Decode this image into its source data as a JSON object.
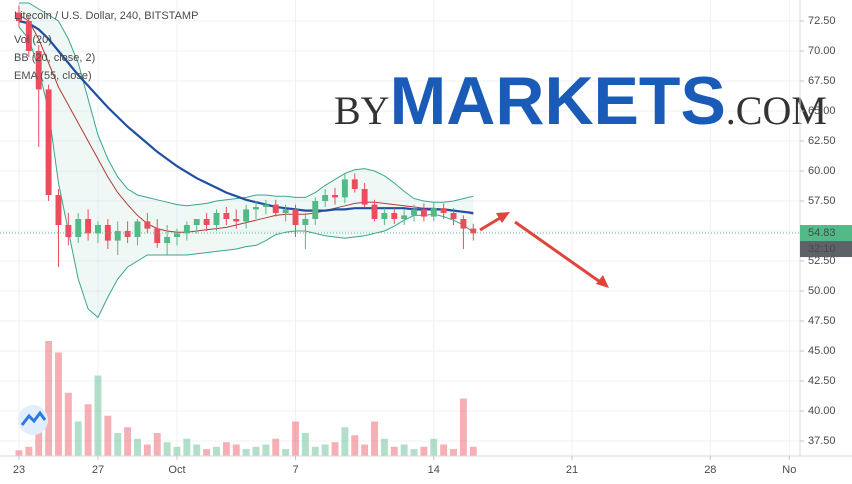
{
  "chart_data": {
    "type": "candlestick",
    "title": "Litecoin / U.S. Dollar, 240, BITSTAMP",
    "indicators": [
      "Vol (20)",
      "BB (20, close, 2)",
      "EMA (55, close)"
    ],
    "watermark": {
      "prefix": "BY",
      "brand": "MARKETS",
      "suffix": ".COM"
    },
    "x": [
      0,
      0.5,
      1,
      1.5,
      2,
      2.5,
      3,
      3.5,
      4,
      4.5,
      5,
      5.5,
      6,
      6.5,
      7,
      7.5,
      8,
      8.5,
      9,
      9.5,
      10,
      10.5,
      11,
      11.5,
      12,
      12.5,
      13,
      13.5,
      14,
      14.5,
      15,
      15.5,
      16,
      16.5,
      17,
      17.5,
      18,
      18.5,
      19,
      19.5,
      20,
      20.5,
      21,
      21.5,
      22,
      22.5,
      23
    ],
    "open": [
      73.2,
      72.5,
      70.0,
      66.8,
      58.0,
      55.5,
      54.5,
      56.0,
      54.8,
      55.5,
      54.2,
      55.0,
      54.5,
      55.8,
      55.2,
      54.0,
      54.5,
      54.8,
      55.5,
      56.0,
      55.5,
      56.5,
      56.0,
      55.8,
      56.8,
      57.0,
      57.2,
      56.5,
      56.8,
      55.5,
      56.0,
      57.5,
      58.0,
      57.8,
      59.3,
      58.5,
      57.2,
      56.0,
      56.5,
      56.0,
      56.3,
      56.8,
      56.2,
      56.9,
      56.5,
      56.0,
      55.2
    ],
    "high": [
      73.8,
      73.0,
      70.5,
      67.2,
      58.5,
      56.5,
      56.5,
      56.8,
      55.8,
      56.0,
      55.8,
      55.8,
      56.0,
      56.5,
      56.0,
      55.5,
      55.2,
      55.8,
      56.0,
      56.5,
      56.8,
      57.0,
      56.8,
      57.2,
      57.5,
      57.6,
      57.6,
      57.2,
      57.2,
      56.5,
      57.8,
      58.5,
      58.6,
      59.8,
      59.8,
      59.0,
      57.6,
      56.9,
      56.9,
      56.8,
      57.2,
      57.3,
      57.4,
      57.3,
      56.9,
      56.3,
      55.6
    ],
    "low": [
      72.0,
      69.5,
      62.0,
      57.5,
      52.0,
      53.8,
      54.0,
      54.2,
      54.0,
      53.5,
      53.0,
      54.0,
      53.8,
      54.8,
      53.6,
      53.0,
      53.8,
      54.2,
      54.8,
      55.0,
      55.0,
      55.5,
      55.2,
      55.2,
      56.0,
      56.4,
      56.2,
      55.8,
      54.5,
      53.5,
      55.5,
      57.0,
      57.2,
      57.3,
      58.2,
      57.0,
      55.8,
      55.5,
      55.6,
      55.5,
      55.8,
      55.8,
      55.8,
      56.0,
      55.5,
      53.5,
      54.2
    ],
    "close": [
      72.5,
      70.0,
      66.8,
      58.0,
      55.5,
      54.5,
      56.0,
      54.8,
      55.5,
      54.2,
      55.0,
      54.5,
      55.8,
      55.2,
      54.0,
      54.5,
      54.8,
      55.5,
      56.0,
      55.5,
      56.5,
      56.0,
      55.8,
      56.8,
      57.0,
      57.2,
      56.5,
      56.8,
      55.5,
      56.0,
      57.5,
      58.0,
      57.8,
      59.3,
      58.5,
      57.2,
      56.0,
      56.5,
      56.0,
      56.3,
      56.8,
      56.2,
      56.9,
      56.5,
      56.0,
      55.2,
      54.8
    ],
    "volume": [
      5,
      8,
      40,
      100,
      90,
      55,
      30,
      45,
      70,
      35,
      20,
      25,
      15,
      10,
      20,
      12,
      8,
      15,
      10,
      6,
      8,
      12,
      10,
      6,
      8,
      10,
      15,
      6,
      30,
      20,
      8,
      10,
      12,
      25,
      18,
      10,
      30,
      15,
      8,
      10,
      6,
      8,
      15,
      10,
      6,
      50,
      8
    ],
    "ema": [
      72.5,
      72.3,
      71.8,
      71.0,
      70.0,
      69.0,
      68.0,
      67.1,
      66.2,
      65.3,
      64.5,
      63.7,
      63.0,
      62.3,
      61.6,
      61.0,
      60.4,
      59.9,
      59.4,
      59.0,
      58.6,
      58.2,
      57.9,
      57.6,
      57.4,
      57.2,
      57.0,
      56.9,
      56.8,
      56.7,
      56.7,
      56.7,
      56.8,
      56.8,
      56.9,
      56.9,
      56.9,
      56.9,
      56.9,
      56.9,
      56.8,
      56.8,
      56.8,
      56.8,
      56.7,
      56.6,
      56.5
    ],
    "bb_basis": [
      73,
      72.5,
      71,
      69,
      67,
      65.5,
      64,
      62.5,
      61,
      59.5,
      58.2,
      57.2,
      56.3,
      55.6,
      55.2,
      55.0,
      54.9,
      54.9,
      55.0,
      55.1,
      55.2,
      55.3,
      55.5,
      55.7,
      55.9,
      56.1,
      56.3,
      56.4,
      56.4,
      56.4,
      56.5,
      56.7,
      56.9,
      57.1,
      57.3,
      57.4,
      57.4,
      57.3,
      57.2,
      57.1,
      57.0,
      56.9,
      56.9,
      56.8,
      56.7,
      56.6,
      56.4
    ],
    "bb_upper": [
      74,
      74,
      73.5,
      73,
      72.5,
      71,
      69,
      66,
      63,
      61,
      59.5,
      58.5,
      58,
      57.8,
      57.6,
      57.4,
      57.2,
      57.1,
      57.2,
      57.3,
      57.5,
      57.6,
      57.7,
      57.8,
      58.0,
      58.0,
      57.9,
      57.9,
      57.8,
      57.8,
      58.2,
      58.8,
      59.3,
      59.8,
      60.1,
      60.2,
      60.0,
      59.6,
      59.0,
      58.3,
      57.7,
      57.5,
      57.4,
      57.4,
      57.5,
      57.7,
      57.9
    ],
    "bb_lower": [
      72,
      71,
      68.5,
      65,
      59,
      55,
      51,
      48.5,
      47.8,
      49.5,
      51,
      52,
      52.5,
      53,
      53,
      53,
      53,
      53,
      53.1,
      53.2,
      53.3,
      53.4,
      53.5,
      53.7,
      53.8,
      54.2,
      54.7,
      54.9,
      55,
      55,
      54.8,
      54.6,
      54.5,
      54.4,
      54.5,
      54.6,
      54.8,
      55,
      55.4,
      55.9,
      56.3,
      56.3,
      56.4,
      56.2,
      55.9,
      55.5,
      54.9
    ],
    "last_price": 54.83,
    "countdown": "32:10",
    "xlim": [
      -0.96,
      39.54
    ],
    "ylim": [
      36.25,
      74.25
    ],
    "yticks": [
      {
        "value": 37.5,
        "label": "37.50"
      },
      {
        "value": 40,
        "label": "40.00"
      },
      {
        "value": 42.5,
        "label": "42.50"
      },
      {
        "value": 45,
        "label": "45.00"
      },
      {
        "value": 47.5,
        "label": "47.50"
      },
      {
        "value": 50,
        "label": "50.00"
      },
      {
        "value": 52.5,
        "label": "52.50"
      },
      {
        "value": 55,
        "label": "55.00"
      },
      {
        "value": 57.5,
        "label": "57.50"
      },
      {
        "value": 60,
        "label": "60.00"
      },
      {
        "value": 62.5,
        "label": "62.50"
      },
      {
        "value": 65,
        "label": "65.00"
      },
      {
        "value": 67.5,
        "label": "67.50"
      },
      {
        "value": 70,
        "label": "70.00"
      },
      {
        "value": 72.5,
        "label": "72.50"
      }
    ],
    "xticks": [
      {
        "value": 0,
        "label": "23"
      },
      {
        "value": 4,
        "label": "27"
      },
      {
        "value": 8,
        "label": "Oct"
      },
      {
        "value": 14,
        "label": "7"
      },
      {
        "value": 21,
        "label": "14"
      },
      {
        "value": 28,
        "label": "21"
      },
      {
        "value": 35,
        "label": "28"
      },
      {
        "value": 39,
        "label": "No"
      }
    ],
    "colors": {
      "up": "#53b987",
      "down": "#eb4d5c",
      "ema": "#1f4fa3",
      "basis": "#b03a3a",
      "band": "#3aa58d",
      "band_fill": "#3aa58d"
    },
    "grid": true
  }
}
